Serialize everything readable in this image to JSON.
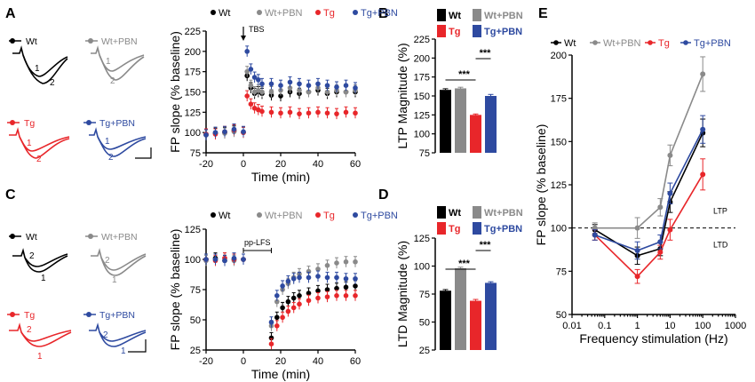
{
  "panels": {
    "A": "A",
    "B": "B",
    "C": "C",
    "D": "D",
    "E": "E"
  },
  "colors": {
    "Wt": "#000000",
    "WtPBN": "#8a8a8a",
    "Tg": "#e8262a",
    "TgPBN": "#2e4aa0"
  },
  "groups": [
    "Wt",
    "Wt+PBN",
    "Tg",
    "Tg+PBN"
  ],
  "trace_labels": {
    "A": {
      "Wt": "Wt",
      "WtPBN": "Wt+PBN",
      "Tg": "Tg",
      "TgPBN": "Tg+PBN",
      "one": "1",
      "two": "2"
    },
    "C": {
      "Wt": "Wt",
      "WtPBN": "Wt+PBN",
      "Tg": "Tg",
      "TgPBN": "Tg+PBN",
      "one": "1",
      "two": "2"
    }
  },
  "annotations": {
    "tbs": "TBS",
    "pplfs": "pp-LFS",
    "ltp": "LTP",
    "ltd": "LTD",
    "sig": "***"
  },
  "chart_data": [
    {
      "id": "A",
      "type": "scatter",
      "title": "",
      "xlabel": "Time (min)",
      "ylabel": "FP slope (% baseline)",
      "xlim": [
        -20,
        60
      ],
      "ylim": [
        75,
        225
      ],
      "xticks": [
        -20,
        0,
        20,
        40,
        60
      ],
      "yticks": [
        75,
        100,
        125,
        150,
        175,
        200,
        225
      ],
      "legend": [
        "Wt",
        "Wt+PBN",
        "Tg",
        "Tg+PBN"
      ],
      "series": [
        {
          "name": "Wt",
          "x": [
            -20,
            -15,
            -10,
            -5,
            0,
            2,
            4,
            6,
            8,
            10,
            15,
            20,
            25,
            30,
            35,
            40,
            45,
            50,
            55,
            60
          ],
          "values": [
            97,
            99,
            100,
            102,
            100,
            170,
            155,
            148,
            150,
            148,
            146,
            145,
            150,
            148,
            150,
            152,
            148,
            150,
            150,
            150
          ]
        },
        {
          "name": "Wt+PBN",
          "x": [
            -20,
            -15,
            -10,
            -5,
            0,
            2,
            4,
            6,
            8,
            10,
            15,
            20,
            25,
            30,
            35,
            40,
            45,
            50,
            55,
            60
          ],
          "values": [
            98,
            100,
            99,
            101,
            100,
            175,
            158,
            150,
            152,
            150,
            150,
            152,
            155,
            152,
            150,
            155,
            150,
            152,
            150,
            152
          ]
        },
        {
          "name": "Tg",
          "x": [
            -20,
            -15,
            -10,
            -5,
            0,
            2,
            4,
            6,
            8,
            10,
            15,
            20,
            25,
            30,
            35,
            40,
            45,
            50,
            55,
            60
          ],
          "values": [
            98,
            98,
            101,
            103,
            100,
            145,
            135,
            130,
            128,
            126,
            125,
            124,
            125,
            123,
            124,
            125,
            124,
            123,
            125,
            124
          ]
        },
        {
          "name": "Tg+PBN",
          "x": [
            -20,
            -15,
            -10,
            -5,
            0,
            2,
            4,
            6,
            8,
            10,
            15,
            20,
            25,
            30,
            35,
            40,
            45,
            50,
            55,
            60
          ],
          "values": [
            97,
            100,
            101,
            104,
            101,
            200,
            178,
            168,
            165,
            160,
            160,
            158,
            162,
            160,
            158,
            160,
            158,
            156,
            158,
            155
          ]
        }
      ],
      "annotations": [
        "TBS"
      ]
    },
    {
      "id": "B",
      "type": "bar",
      "title": "",
      "xlabel": "",
      "ylabel": "LTP Magnitude (%)",
      "ylim": [
        75,
        225
      ],
      "yticks": [
        75,
        100,
        125,
        150,
        175,
        200,
        225
      ],
      "categories": [
        "Wt",
        "Wt+PBN",
        "Tg",
        "Tg+PBN"
      ],
      "values": [
        158,
        160,
        125,
        150
      ],
      "errors": [
        1.5,
        1.5,
        1.2,
        2
      ],
      "annotations": [
        "***",
        "***"
      ]
    },
    {
      "id": "C",
      "type": "scatter",
      "title": "",
      "xlabel": "Time (min)",
      "ylabel": "FP slope (% baseline)",
      "xlim": [
        -20,
        60
      ],
      "ylim": [
        25,
        125
      ],
      "xticks": [
        -20,
        0,
        20,
        40,
        60
      ],
      "yticks": [
        25,
        50,
        75,
        100,
        125
      ],
      "legend": [
        "Wt",
        "Wt+PBN",
        "Tg",
        "Tg+PBN"
      ],
      "series": [
        {
          "name": "Wt",
          "x": [
            -20,
            -15,
            -10,
            -5,
            0,
            15,
            18,
            21,
            24,
            27,
            30,
            35,
            40,
            45,
            50,
            55,
            60
          ],
          "values": [
            100,
            101,
            99,
            100,
            100,
            35,
            52,
            60,
            65,
            68,
            70,
            72,
            74,
            75,
            76,
            77,
            78
          ]
        },
        {
          "name": "Wt+PBN",
          "x": [
            -20,
            -15,
            -10,
            -5,
            0,
            15,
            18,
            21,
            24,
            27,
            30,
            35,
            40,
            45,
            50,
            55,
            60
          ],
          "values": [
            99,
            100,
            101,
            99,
            100,
            45,
            65,
            75,
            80,
            85,
            88,
            90,
            92,
            95,
            97,
            98,
            98
          ]
        },
        {
          "name": "Tg",
          "x": [
            -20,
            -15,
            -10,
            -5,
            0,
            15,
            18,
            21,
            24,
            27,
            30,
            35,
            40,
            45,
            50,
            55,
            60
          ],
          "values": [
            100,
            99,
            101,
            100,
            100,
            30,
            45,
            52,
            57,
            60,
            63,
            66,
            68,
            69,
            70,
            70,
            70
          ]
        },
        {
          "name": "Tg+PBN",
          "x": [
            -20,
            -15,
            -10,
            -5,
            0,
            15,
            18,
            21,
            24,
            27,
            30,
            35,
            40,
            45,
            50,
            55,
            60
          ],
          "values": [
            100,
            100,
            99,
            101,
            100,
            48,
            70,
            78,
            82,
            84,
            85,
            85,
            86,
            85,
            85,
            84,
            84
          ]
        }
      ],
      "annotations": [
        "pp-LFS"
      ]
    },
    {
      "id": "D",
      "type": "bar",
      "title": "",
      "xlabel": "",
      "ylabel": "LTD Magnitude (%)",
      "ylim": [
        25,
        125
      ],
      "yticks": [
        25,
        50,
        75,
        100,
        125
      ],
      "categories": [
        "Wt",
        "Wt+PBN",
        "Tg",
        "Tg+PBN"
      ],
      "values": [
        78,
        98,
        69,
        85
      ],
      "errors": [
        1,
        1,
        1.2,
        1
      ],
      "annotations": [
        "***",
        "***"
      ]
    },
    {
      "id": "E",
      "type": "line",
      "title": "",
      "xlabel": "Frequency stimulation (Hz)",
      "ylabel": "FP slope (% baseline)",
      "xscale": "log",
      "xlim": [
        0.01,
        1000
      ],
      "ylim": [
        50,
        200
      ],
      "xticks": [
        0.01,
        0.1,
        1,
        10,
        100,
        1000
      ],
      "xticklabels": [
        "0.01",
        "0.1",
        "1",
        "10",
        "100",
        "1000"
      ],
      "yticks": [
        50,
        75,
        100,
        125,
        150,
        175,
        200
      ],
      "legend": [
        "Wt",
        "Wt+PBN",
        "Tg",
        "Tg+PBN"
      ],
      "reference_line": 100,
      "series": [
        {
          "name": "Wt",
          "x": [
            0.05,
            1,
            5,
            10,
            100
          ],
          "values": [
            99,
            84,
            88,
            115,
            155
          ],
          "errors": [
            3,
            5,
            4,
            6,
            8
          ]
        },
        {
          "name": "Wt+PBN",
          "x": [
            0.05,
            1,
            5,
            10,
            100
          ],
          "values": [
            100,
            100,
            112,
            142,
            189
          ],
          "errors": [
            3,
            6,
            5,
            6,
            10
          ]
        },
        {
          "name": "Tg",
          "x": [
            0.05,
            1,
            5,
            10,
            100
          ],
          "values": [
            96,
            72,
            86,
            99,
            131
          ],
          "errors": [
            3,
            4,
            4,
            6,
            9
          ]
        },
        {
          "name": "Tg+PBN",
          "x": [
            0.05,
            1,
            5,
            10,
            100
          ],
          "values": [
            96,
            87,
            92,
            120,
            157
          ],
          "errors": [
            3,
            5,
            4,
            6,
            8
          ]
        }
      ],
      "annotations": [
        "LTP",
        "LTD"
      ]
    }
  ]
}
